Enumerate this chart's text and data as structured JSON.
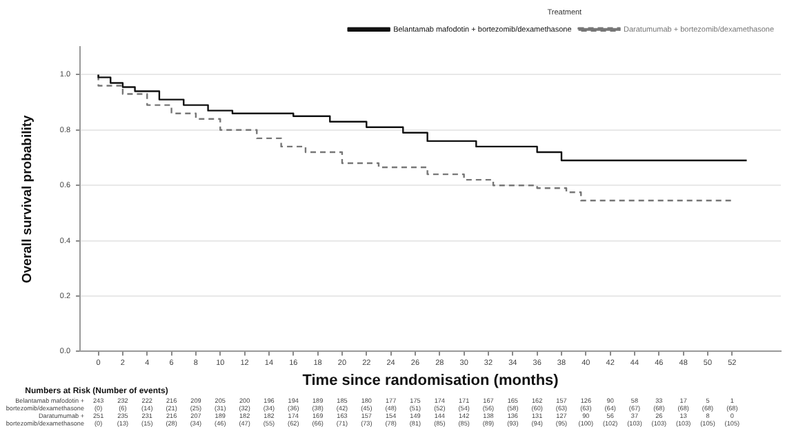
{
  "chart_data": {
    "type": "step",
    "xlabel": "Time since randomisation (months)",
    "ylabel": "Overall survival probability",
    "legend_title": "Treatment",
    "legend": "top right",
    "grid": "y",
    "marker": "none",
    "xlim": [
      -1.5,
      56
    ],
    "ylim": [
      0,
      1.1
    ],
    "xticks": [
      0,
      2,
      4,
      6,
      8,
      10,
      12,
      14,
      16,
      18,
      20,
      22,
      24,
      26,
      28,
      30,
      32,
      34,
      36,
      38,
      40,
      42,
      44,
      46,
      48,
      50,
      52
    ],
    "yticks": [
      {
        "value": 0,
        "label": "0.0"
      },
      {
        "value": 0.2,
        "label": "0.2"
      },
      {
        "value": 0.4,
        "label": "0.4"
      },
      {
        "value": 0.6,
        "label": "0.6"
      },
      {
        "value": 0.8,
        "label": "0.8"
      },
      {
        "value": 1,
        "label": "1.0"
      }
    ],
    "series": [
      {
        "name": "Belantamab mafodotin + bortezomib/dexamethasone",
        "color": "#111111",
        "line_style": "solid",
        "x": [
          0,
          1,
          2,
          3,
          5,
          7,
          9,
          11,
          16,
          19,
          22,
          25,
          27,
          31,
          36,
          38,
          45,
          53.2
        ],
        "values": [
          1,
          0.99,
          0.97,
          0.955,
          0.94,
          0.91,
          0.89,
          0.87,
          0.86,
          0.85,
          0.83,
          0.81,
          0.79,
          0.76,
          0.74,
          0.72,
          0.69,
          0.69
        ]
      },
      {
        "name": "Daratumumab + bortezomib/dexamethasone",
        "color": "#777777",
        "line_style": "dashed",
        "x": [
          0,
          2,
          4,
          6,
          8,
          10,
          13,
          15,
          17,
          20,
          23,
          27,
          30,
          32.4,
          36,
          38.4,
          39.6,
          43,
          52.1
        ],
        "values": [
          1,
          0.96,
          0.93,
          0.89,
          0.86,
          0.84,
          0.8,
          0.77,
          0.74,
          0.72,
          0.68,
          0.665,
          0.64,
          0.62,
          0.6,
          0.59,
          0.575,
          0.545,
          0.545
        ]
      }
    ],
    "annotations": [
      "Numbers at Risk (Number of events)",
      "Belantamab mafodotin +",
      "243 232 222 216 209 205 200 196 194 189 185 180 177 175 174 171 167 165 162 157 126 90 58 33 17 5 1",
      "bortezomib/dexamethasone",
      "(0) (6) (14) (21) (25) (31) (32) (34) (36) (38) (42) (45) (48) (51) (52) (54) (56) (58) (60) (63) (63) (64) (67) (68) (68) (68) (68)",
      "Daratumumab +",
      "251 235 231 216 207 189 182 182 174 169 163 157 154 149 144 142 138 136 131 127 90 56 37 26 13 8 0",
      "bortezomib/dexamethasone",
      "(0) (13) (15) (28) (34) (46) (47) (55) (62) (66) (71) (73) (78) (81) (85) (85) (89) (93) (94) (95) (100) (102) (103) (103) (103) (105) (105)"
    ]
  }
}
